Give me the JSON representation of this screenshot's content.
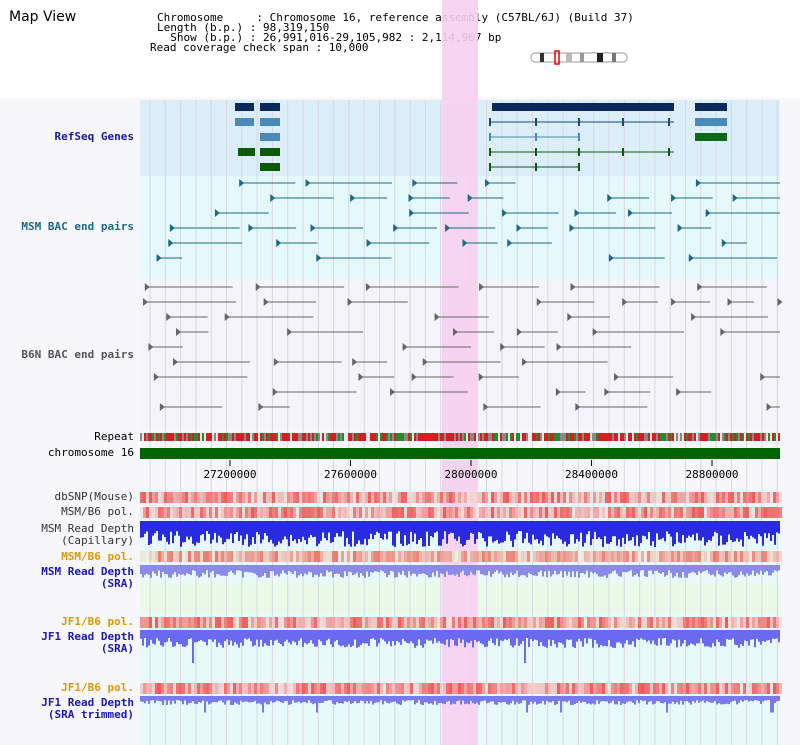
{
  "page_title": "Map View",
  "info": {
    "chromosome": "Chromosome     : Chromosome 16, reference assembly (C57BL/6J) (Build 37)",
    "length": "Length (b.p.) : 98,319,150",
    "show": "  Show (b.p.) : 26,991,016-29,105,982 : 2,114,967 bp",
    "span": "Read coverage check span : 10,000"
  },
  "tracks": {
    "refseq": "RefSeq Genes",
    "msm_bac": "MSM BAC end pairs",
    "b6n_bac": "B6N BAC end pairs",
    "repeat": "Repeat",
    "chromosome": "chromosome 16",
    "dbsnp": "dbSNP(Mouse)",
    "msm_b6_pol_1": "MSM/B6 pol.",
    "msm_read_depth_cap_1": "MSM Read Depth",
    "msm_read_depth_cap_2": "(Capillary)",
    "msm_b6_pol_2": "MSM/B6 pol.",
    "msm_read_depth_sra_1": "MSM Read Depth",
    "msm_read_depth_sra_2": "(SRA)",
    "jf1_b6_pol_1": "JF1/B6 pol.",
    "jf1_read_depth_1": "JF1 Read Depth",
    "jf1_read_depth_2": "(SRA)",
    "jf1_b6_pol_2": "JF1/B6 pol.",
    "jf1_read_depth_trim_1": "JF1 Read Depth",
    "jf1_read_depth_trim_2": "(SRA trimmed)"
  },
  "axis": {
    "ticks": [
      "27200000",
      "27600000",
      "28000000",
      "28400000",
      "28800000"
    ]
  },
  "colors": {
    "refseq_label": "#1a1a99",
    "msm_label": "#1a6a8a",
    "b6n_label": "#555555",
    "pol_label_orange": "#e09a00",
    "depth_label_blue": "#1a1ab0",
    "highlight": "#f6d0f0",
    "chromosome_bar": "#006400"
  }
}
